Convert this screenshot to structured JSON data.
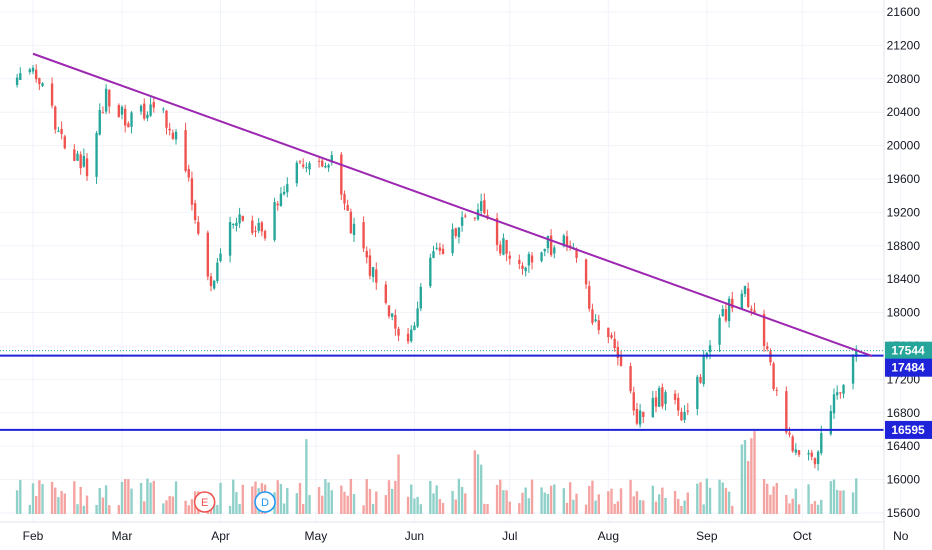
{
  "colors": {
    "up": "#26a69a",
    "down": "#ef5350",
    "up_volume": "#8fd0c9",
    "down_volume": "#f4a3a1",
    "trendline": "#9c27b0",
    "support": "#1e22d8",
    "grid": "#f0f3fa",
    "axis_text": "#131722",
    "price_badge": "#26a69a",
    "level_badge": "#1e22d8"
  },
  "chart_data": {
    "type": "candlestick",
    "x_axis": {
      "labels": [
        "Feb",
        "Mar",
        "Apr",
        "May",
        "Jun",
        "Jul",
        "Aug",
        "Sep",
        "Oct",
        "No"
      ]
    },
    "y_axis": {
      "ticks": [
        "21600",
        "21200",
        "20800",
        "20400",
        "20000",
        "19600",
        "19200",
        "18800",
        "18400",
        "18000",
        "17600",
        "17200",
        "16800",
        "16400",
        "16000",
        "15600"
      ],
      "range": [
        15550,
        21700
      ],
      "position": "right"
    },
    "price_levels": [
      {
        "label": "17544",
        "value": 17544,
        "kind": "last-price"
      },
      {
        "label": "17484",
        "value": 17484,
        "kind": "horizontal-line"
      },
      {
        "label": "16595",
        "value": 16595,
        "kind": "horizontal-line"
      }
    ],
    "trendline": {
      "start": {
        "date": "2022-02-01",
        "value": 21100
      },
      "end": {
        "date": "2022-10-23",
        "value": 17480
      }
    },
    "markers": [
      {
        "text": "E",
        "date": "2022-03-27",
        "color": "#ef5350"
      },
      {
        "text": "D",
        "date": "2022-04-15",
        "color": "#2196f3"
      }
    ],
    "grid": true,
    "series_segments": [
      {
        "from": "2022-01-27",
        "value": 20700
      },
      {
        "from": "2022-02-01",
        "value": 21000
      },
      {
        "from": "2022-02-10",
        "value": 20100
      },
      {
        "from": "2022-02-18",
        "value": 19700
      },
      {
        "from": "2022-02-24",
        "value": 20600
      },
      {
        "from": "2022-03-03",
        "value": 20300
      },
      {
        "from": "2022-03-12",
        "value": 20500
      },
      {
        "from": "2022-03-20",
        "value": 19900
      },
      {
        "from": "2022-03-29",
        "value": 18300
      },
      {
        "from": "2022-04-05",
        "value": 19100
      },
      {
        "from": "2022-04-15",
        "value": 19000
      },
      {
        "from": "2022-04-25",
        "value": 19700
      },
      {
        "from": "2022-05-06",
        "value": 19800
      },
      {
        "from": "2022-05-10",
        "value": 19200
      },
      {
        "from": "2022-05-20",
        "value": 18400
      },
      {
        "from": "2022-05-29",
        "value": 17500
      },
      {
        "from": "2022-06-05",
        "value": 18600
      },
      {
        "from": "2022-06-15",
        "value": 19000
      },
      {
        "from": "2022-06-22",
        "value": 19300
      },
      {
        "from": "2022-06-28",
        "value": 18800
      },
      {
        "from": "2022-07-05",
        "value": 18600
      },
      {
        "from": "2022-07-13",
        "value": 18800
      },
      {
        "from": "2022-07-20",
        "value": 18800
      },
      {
        "from": "2022-07-27",
        "value": 18000
      },
      {
        "from": "2022-08-03",
        "value": 17500
      },
      {
        "from": "2022-08-10",
        "value": 16800
      },
      {
        "from": "2022-08-18",
        "value": 17000
      },
      {
        "from": "2022-08-25",
        "value": 16700
      },
      {
        "from": "2022-09-05",
        "value": 17900
      },
      {
        "from": "2022-09-12",
        "value": 18300
      },
      {
        "from": "2022-09-19",
        "value": 17600
      },
      {
        "from": "2022-09-25",
        "value": 16700
      },
      {
        "from": "2022-09-29",
        "value": 16300
      },
      {
        "from": "2022-10-05",
        "value": 16200
      },
      {
        "from": "2022-10-11",
        "value": 16900
      },
      {
        "from": "2022-10-18",
        "value": 17560
      }
    ]
  }
}
